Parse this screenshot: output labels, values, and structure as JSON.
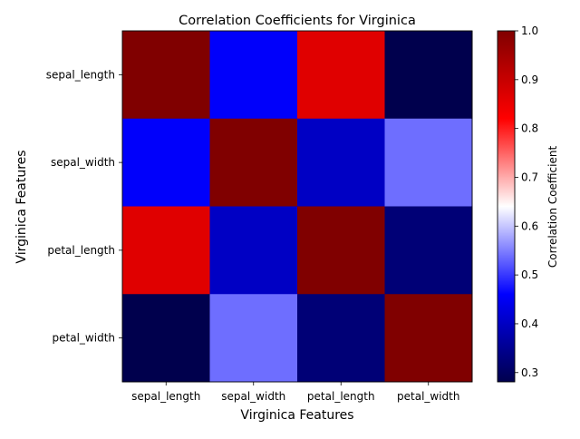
{
  "chart_data": {
    "type": "heatmap",
    "title": "Correlation Coefficients for Virginica",
    "xlabel": "Virginica Features",
    "ylabel": "Virginica Features",
    "x_categories": [
      "sepal_length",
      "sepal_width",
      "petal_length",
      "petal_width"
    ],
    "y_categories": [
      "sepal_length",
      "sepal_width",
      "petal_length",
      "petal_width"
    ],
    "values": [
      [
        1.0,
        0.457,
        0.864,
        0.281
      ],
      [
        0.457,
        1.0,
        0.401,
        0.538
      ],
      [
        0.864,
        0.401,
        1.0,
        0.322
      ],
      [
        0.281,
        0.538,
        0.322,
        1.0
      ]
    ],
    "colormap": "seismic",
    "colorbar": {
      "label": "Correlation Coefficient",
      "range": [
        0.281,
        1.0
      ],
      "ticks": [
        0.3,
        0.4,
        0.5,
        0.6,
        0.7,
        0.8,
        0.9,
        1.0
      ],
      "tick_labels": [
        "0.3",
        "0.4",
        "0.5",
        "0.6",
        "0.7",
        "0.8",
        "0.9",
        "1.0"
      ]
    },
    "grid": false
  }
}
